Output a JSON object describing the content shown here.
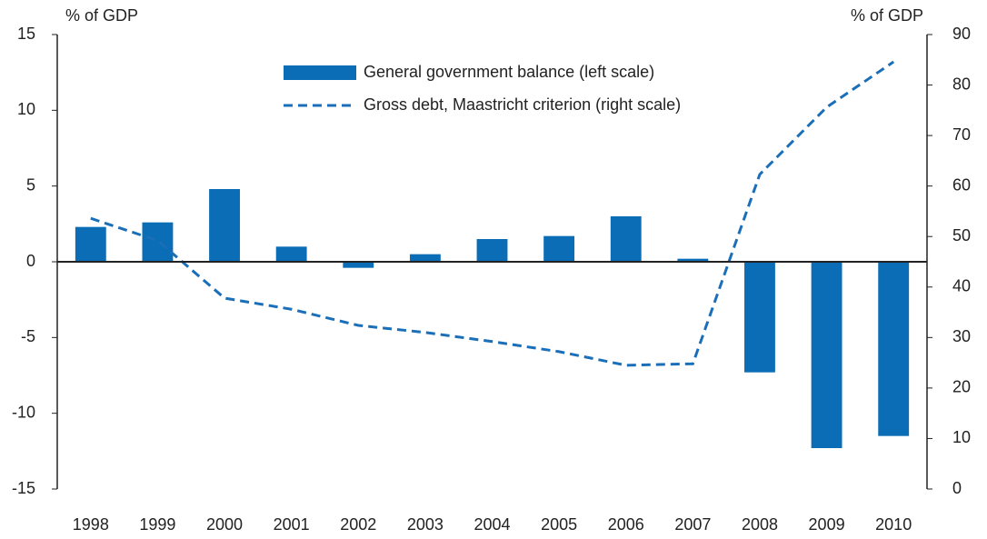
{
  "chart_data": {
    "type": "bar",
    "y_label": "% of GDP",
    "y2_label": "% of GDP",
    "categories": [
      "1998",
      "1999",
      "2000",
      "2001",
      "2002",
      "2003",
      "2004",
      "2005",
      "2006",
      "2007",
      "2008",
      "2009",
      "2010"
    ],
    "series": [
      {
        "name": "General government balance (left scale)",
        "type": "bar",
        "color": "#0a6db5",
        "values": [
          2.3,
          2.6,
          4.8,
          1.0,
          -0.4,
          0.5,
          1.5,
          1.7,
          3.0,
          0.2,
          -7.3,
          -12.3,
          -11.5
        ]
      },
      {
        "name": "Gross debt, Maastricht criterion (right scale)",
        "type": "line",
        "axis": "y2",
        "color": "#1a6fb8",
        "dashed": true,
        "values": [
          53.6,
          49.2,
          37.8,
          35.6,
          32.4,
          31.0,
          29.2,
          27.2,
          24.5,
          24.8,
          62.3,
          75.6,
          84.6
        ]
      }
    ],
    "ylim": [
      -15,
      15
    ],
    "yticks": [
      -15,
      -10,
      -5,
      0,
      5,
      10,
      15
    ],
    "y2lim": [
      0,
      90
    ],
    "y2ticks": [
      0,
      10,
      20,
      30,
      40,
      50,
      60,
      70,
      80,
      90
    ],
    "legend": "top-center",
    "grid": false
  }
}
